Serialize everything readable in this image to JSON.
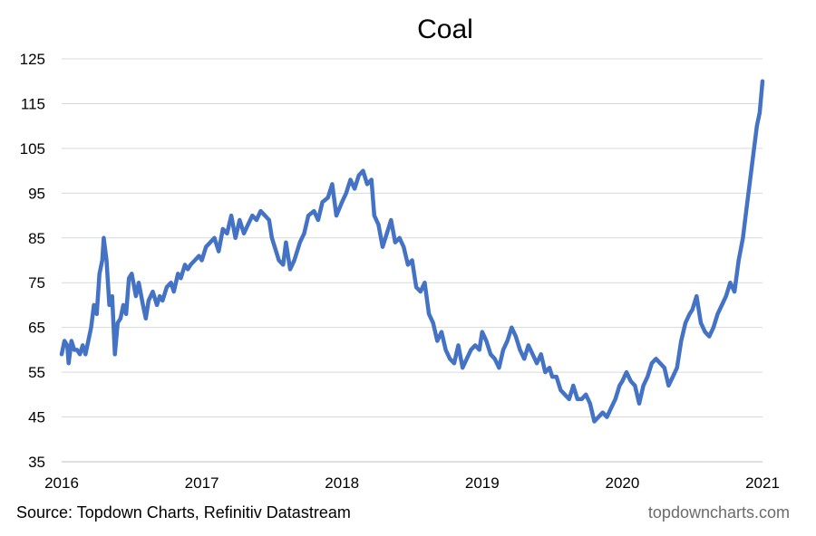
{
  "source_text": "Source: Topdown Charts, Refinitiv Datastream",
  "site_text": "topdowncharts.com",
  "chart_data": {
    "type": "line",
    "title": "Coal",
    "xlabel": "",
    "ylabel": "",
    "ylim": [
      35,
      125
    ],
    "yticks": [
      35,
      45,
      55,
      65,
      75,
      85,
      95,
      105,
      115,
      125
    ],
    "xlim": [
      2016,
      2021
    ],
    "xticks": [
      2016,
      2017,
      2018,
      2019,
      2020,
      2021
    ],
    "grid": "horizontal",
    "legend": "none",
    "line_color": "#4472c4",
    "series": [
      {
        "x": [
          2016.0,
          2016.02,
          2016.04,
          2016.05,
          2016.07,
          2016.09,
          2016.11,
          2016.13,
          2016.15,
          2016.17,
          2016.19,
          2016.21,
          2016.23,
          2016.25,
          2016.27,
          2016.29,
          2016.3,
          2016.32,
          2016.34,
          2016.36,
          2016.38,
          2016.4,
          2016.42,
          2016.44,
          2016.46,
          2016.48,
          2016.5,
          2016.53,
          2016.55,
          2016.58,
          2016.6,
          2016.62,
          2016.65,
          2016.68,
          2016.7,
          2016.72,
          2016.75,
          2016.78,
          2016.8,
          2016.83,
          2016.85,
          2016.88,
          2016.9,
          2016.92,
          2016.95,
          2016.98,
          2017.0,
          2017.03,
          2017.06,
          2017.09,
          2017.12,
          2017.15,
          2017.18,
          2017.21,
          2017.24,
          2017.27,
          2017.3,
          2017.33,
          2017.36,
          2017.39,
          2017.42,
          2017.45,
          2017.48,
          2017.5,
          2017.53,
          2017.55,
          2017.58,
          2017.6,
          2017.63,
          2017.66,
          2017.7,
          2017.73,
          2017.76,
          2017.8,
          2017.83,
          2017.86,
          2017.9,
          2017.93,
          2017.96,
          2018.0,
          2018.03,
          2018.06,
          2018.09,
          2018.12,
          2018.15,
          2018.18,
          2018.21,
          2018.23,
          2018.26,
          2018.29,
          2018.32,
          2018.35,
          2018.38,
          2018.41,
          2018.44,
          2018.47,
          2018.5,
          2018.53,
          2018.56,
          2018.59,
          2018.62,
          2018.65,
          2018.68,
          2018.71,
          2018.74,
          2018.77,
          2018.8,
          2018.83,
          2018.86,
          2018.89,
          2018.92,
          2018.95,
          2018.98,
          2019.0,
          2019.03,
          2019.06,
          2019.09,
          2019.12,
          2019.15,
          2019.18,
          2019.21,
          2019.24,
          2019.27,
          2019.3,
          2019.33,
          2019.36,
          2019.39,
          2019.42,
          2019.45,
          2019.48,
          2019.5,
          2019.53,
          2019.56,
          2019.59,
          2019.62,
          2019.65,
          2019.68,
          2019.71,
          2019.74,
          2019.77,
          2019.8,
          2019.83,
          2019.86,
          2019.89,
          2019.92,
          2019.95,
          2019.98,
          2020.0,
          2020.03,
          2020.06,
          2020.09,
          2020.12,
          2020.15,
          2020.18,
          2020.21,
          2020.24,
          2020.27,
          2020.3,
          2020.33,
          2020.36,
          2020.39,
          2020.42,
          2020.45,
          2020.48,
          2020.5,
          2020.53,
          2020.56,
          2020.59,
          2020.62,
          2020.65,
          2020.68,
          2020.71,
          2020.74,
          2020.77,
          2020.8,
          2020.83,
          2020.86,
          2020.88,
          2020.9,
          2020.92,
          2020.94,
          2020.96,
          2020.98,
          2021.0
        ],
        "y": [
          59,
          62,
          61,
          57,
          62,
          60,
          60,
          59,
          61,
          59,
          62,
          65,
          70,
          68,
          77,
          80,
          85,
          80,
          70,
          72,
          59,
          66,
          67,
          70,
          68,
          76,
          77,
          72,
          75,
          70,
          67,
          71,
          73,
          70,
          72,
          71,
          74,
          75,
          73,
          77,
          76,
          79,
          78,
          79,
          80,
          81,
          80,
          83,
          84,
          85,
          82,
          87,
          86,
          90,
          85,
          89,
          86,
          88,
          90,
          89,
          91,
          90,
          89,
          85,
          82,
          80,
          79,
          84,
          78,
          80,
          84,
          86,
          90,
          91,
          89,
          93,
          94,
          97,
          90,
          93,
          95,
          98,
          96,
          99,
          100,
          97,
          98,
          90,
          88,
          83,
          86,
          89,
          84,
          85,
          83,
          79,
          80,
          74,
          73,
          75,
          68,
          66,
          62,
          64,
          60,
          58,
          57,
          61,
          56,
          58,
          60,
          61,
          60,
          64,
          62,
          59,
          58,
          56,
          60,
          62,
          65,
          63,
          60,
          58,
          61,
          59,
          57,
          59,
          55,
          56,
          54,
          54,
          51,
          50,
          49,
          52,
          49,
          49,
          50,
          48,
          44,
          45,
          46,
          45,
          47,
          49,
          52,
          53,
          55,
          53,
          52,
          48,
          52,
          54,
          57,
          58,
          57,
          56,
          52,
          54,
          56,
          62,
          66,
          68,
          69,
          72,
          66,
          64,
          63,
          65,
          68,
          70,
          72,
          75,
          73,
          80,
          85,
          90,
          95,
          100,
          105,
          110,
          113,
          120
        ]
      }
    ]
  }
}
